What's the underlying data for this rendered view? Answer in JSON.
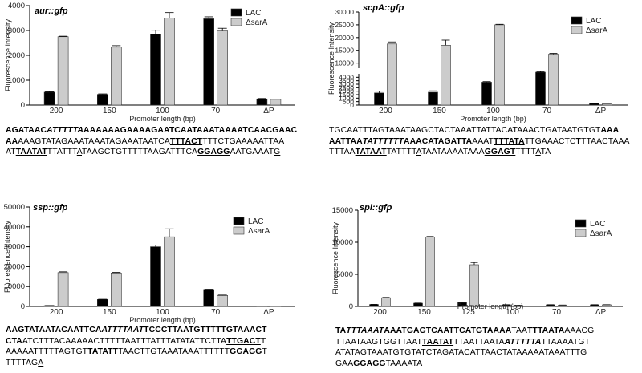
{
  "chart_data": [
    {
      "type": "bar",
      "title": "aur::gfp",
      "xlabel": "Promoter length (bp)",
      "ylabel": "Fluorescence Intensity",
      "categories": [
        "200",
        "150",
        "100",
        "70",
        "ΔP"
      ],
      "ylim": [
        0,
        4000
      ],
      "yticks": [
        0,
        1000,
        2000,
        3000,
        4000
      ],
      "legend_position": "top-right",
      "series": [
        {
          "name": "LAC",
          "color": "#000000",
          "values": [
            520,
            430,
            2850,
            3470,
            250
          ],
          "errors": [
            20,
            20,
            160,
            80,
            15
          ]
        },
        {
          "name": "ΔsarA",
          "color": "#cccccc",
          "values": [
            2750,
            2330,
            3500,
            2980,
            230
          ],
          "errors": [
            20,
            60,
            220,
            110,
            10
          ]
        }
      ]
    },
    {
      "type": "bar",
      "title": "scpA::gfp",
      "xlabel": "Promoter length (bp)",
      "ylabel": "Fluorescence Intensity",
      "categories": [
        "200",
        "150",
        "100",
        "70",
        "ΔP"
      ],
      "axis_break": [
        4500,
        8000
      ],
      "yticks": [
        0,
        500,
        1000,
        1500,
        2000,
        2500,
        3000,
        3500,
        4000,
        10000,
        15000,
        20000,
        25000,
        30000
      ],
      "legend_position": "top-right",
      "series": [
        {
          "name": "LAC",
          "color": "#000000",
          "values": [
            1750,
            1850,
            3300,
            5500,
            250
          ],
          "errors": [
            250,
            200,
            80,
            400,
            10
          ]
        },
        {
          "name": "ΔsarA",
          "color": "#cccccc",
          "values": [
            17500,
            17000,
            25000,
            13500,
            220
          ],
          "errors": [
            800,
            2000,
            200,
            300,
            10
          ]
        }
      ]
    },
    {
      "type": "bar",
      "title": "ssp::gfp",
      "xlabel": "Promoter length (bp)",
      "ylabel": "Fluorescence Intensity",
      "categories": [
        "200",
        "150",
        "100",
        "70",
        "ΔP"
      ],
      "ylim": [
        0,
        50000
      ],
      "yticks": [
        0,
        10000,
        20000,
        30000,
        40000,
        50000
      ],
      "legend_position": "top-right",
      "series": [
        {
          "name": "LAC",
          "color": "#000000",
          "values": [
            400,
            3500,
            30000,
            8500,
            200
          ],
          "errors": [
            50,
            100,
            800,
            150,
            20
          ]
        },
        {
          "name": "ΔsarA",
          "color": "#cccccc",
          "values": [
            17000,
            16800,
            35000,
            5500,
            150
          ],
          "errors": [
            400,
            300,
            4000,
            200,
            20
          ]
        }
      ]
    },
    {
      "type": "bar",
      "title": "spl::gfp",
      "xlabel": "Promoter length (bp)",
      "ylabel": "Fluorescence Intensity",
      "categories": [
        "200",
        "150",
        "125",
        "100",
        "70",
        "ΔP"
      ],
      "ylim": [
        0,
        15000
      ],
      "yticks": [
        0,
        5000,
        10000,
        15000
      ],
      "legend_position": "top-right",
      "series": [
        {
          "name": "LAC",
          "color": "#000000",
          "values": [
            300,
            500,
            600,
            250,
            250,
            250
          ],
          "errors": [
            20,
            20,
            60,
            20,
            20,
            20
          ]
        },
        {
          "name": "ΔsarA",
          "color": "#cccccc",
          "values": [
            1350,
            10800,
            6500,
            150,
            200,
            250
          ],
          "errors": [
            50,
            100,
            350,
            20,
            20,
            20
          ]
        }
      ]
    }
  ],
  "sequences": [
    {
      "name": "aur",
      "lines": [
        [
          [
            "AGATAAC",
            "b"
          ],
          [
            "ATTTTTA",
            "bi"
          ],
          [
            "AAAAAAGAAAAGAATCAATAAATAAAATCAACGAAC",
            "b"
          ]
        ],
        [
          [
            "AA",
            "b"
          ],
          [
            "AAAGTATAGAAATAAATAGAAATAATCA",
            ""
          ],
          [
            "TTTACT",
            "bu"
          ],
          [
            "TTTCTGAAAAATTAA",
            ""
          ]
        ],
        [
          [
            "AT",
            ""
          ],
          [
            "TAATAT",
            "bu"
          ],
          [
            "TTATTT",
            ""
          ],
          [
            "A",
            "u"
          ],
          [
            "TAAGCTGTTTTTAAGATTTCA",
            ""
          ],
          [
            "GGAGG",
            "bu"
          ],
          [
            "AATGAAAT",
            ""
          ],
          [
            "G",
            "u"
          ]
        ]
      ]
    },
    {
      "name": "scpA",
      "lines": [
        [
          [
            "TGCAATTTAGTAAATAAGCTACTAAATTATTACATAAACTGATAATGTGT",
            ""
          ],
          [
            "AAA",
            "b"
          ]
        ],
        [
          [
            "AATTAA",
            "b"
          ],
          [
            "TATTTTTT",
            "bi"
          ],
          [
            "AAACATAGATTA",
            "b"
          ],
          [
            "AAAT",
            ""
          ],
          [
            "TTTATA",
            "bu"
          ],
          [
            "TTGAAACTC",
            ""
          ],
          [
            "T",
            "b"
          ],
          [
            "TTAACTAAA",
            ""
          ]
        ],
        [
          [
            "TTTAA",
            ""
          ],
          [
            "TATAAT",
            "bu"
          ],
          [
            "TATTTT",
            ""
          ],
          [
            "A",
            "u"
          ],
          [
            "TAATAAAATAAA",
            ""
          ],
          [
            "GGAGT",
            "bu"
          ],
          [
            "TTTT",
            ""
          ],
          [
            "A",
            "u"
          ],
          [
            "TA",
            ""
          ]
        ]
      ]
    },
    {
      "name": "ssp",
      "lines": [
        [
          [
            "AAGTATAATACAATTCA",
            "b"
          ],
          [
            "ATTTTAAT",
            "bi"
          ],
          [
            "TCCCTTAATGTTTTTGTAAACT",
            "b"
          ]
        ],
        [
          [
            "CTA",
            "b"
          ],
          [
            "ATCTTTACAAAAACTTTTTAATTTATTTATATATTCTTA",
            ""
          ],
          [
            "TTGACT",
            "bu"
          ],
          [
            "T",
            ""
          ]
        ],
        [
          [
            "AAAAATTTTTAGTGT",
            ""
          ],
          [
            "TATATT",
            "bu"
          ],
          [
            "TAACTT",
            ""
          ],
          [
            "G",
            "u"
          ],
          [
            "TAAATAAATTTTTT",
            ""
          ],
          [
            "GGAGG",
            "bu"
          ],
          [
            "T",
            ""
          ]
        ],
        [
          [
            "TTTTAG",
            ""
          ],
          [
            "A",
            "u"
          ]
        ]
      ]
    },
    {
      "name": "spl",
      "lines": [
        [
          [
            "TA",
            "b"
          ],
          [
            "TTTAAAT",
            "bi"
          ],
          [
            "AAATGAGTCAATTCATGTAAAA",
            "b"
          ],
          [
            "TAA",
            ""
          ],
          [
            "TTTAATA",
            "bu"
          ],
          [
            "AAACG",
            ""
          ]
        ],
        [
          [
            "TTAATAAGTGGTTAAT",
            ""
          ],
          [
            "TAATAT",
            "bu"
          ],
          [
            "TTAATTAATA",
            ""
          ],
          [
            "ATTTTTA",
            "bi"
          ],
          [
            "TTAAAATGT",
            ""
          ]
        ],
        [
          [
            "ATATAGTAAATGTGTATCTAGATACATTAACTATAAAAATAAATTTG",
            ""
          ]
        ],
        [
          [
            "GAA",
            ""
          ],
          [
            "GGAGG",
            "bu"
          ],
          [
            "TAAAATA",
            ""
          ]
        ]
      ]
    }
  ]
}
